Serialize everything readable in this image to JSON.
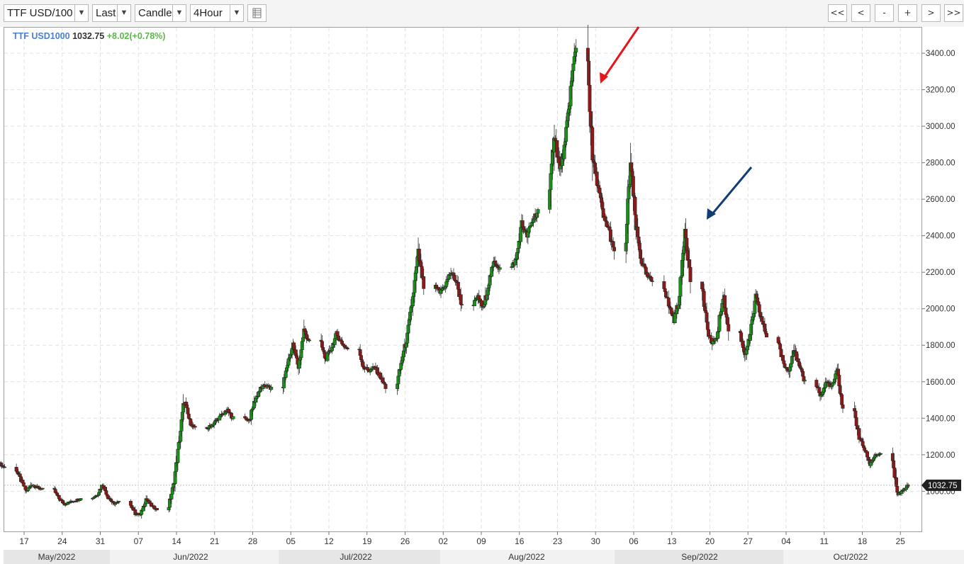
{
  "toolbar": {
    "symbol": "TTF USD/100",
    "price_type": "Last",
    "style": "Candle",
    "interval": "4Hour",
    "nav": [
      "<<",
      "<",
      "-",
      "+",
      ">",
      ">>"
    ]
  },
  "legend": {
    "symbol": "TTF USD1000",
    "last": "1032.75",
    "change": "+8.02(+0.78%)"
  },
  "price_tag": "1032.75",
  "colors": {
    "up": "#1a8f1a",
    "down": "#8b1a1a",
    "grid": "#e2e2e2",
    "red_arrow": "#e8141c",
    "blue_arrow": "#103d73"
  },
  "chart_data": {
    "type": "candlestick",
    "ylim": [
      780,
      3540
    ],
    "y_ticks": [
      1000,
      1200,
      1400,
      1600,
      1800,
      2000,
      2200,
      2400,
      2600,
      2800,
      3000,
      3200,
      3400
    ],
    "y_tick_labels": [
      "1000.00",
      "1200.00",
      "1400.00",
      "1600.00",
      "1800.00",
      "2000.00",
      "2200.00",
      "2400.00",
      "2600.00",
      "2800.00",
      "3000.00",
      "3200.00",
      "3400.00"
    ],
    "x_ticks": [
      "17",
      "24",
      "31",
      "07",
      "14",
      "21",
      "28",
      "05",
      "12",
      "19",
      "26",
      "02",
      "09",
      "16",
      "23",
      "30",
      "06",
      "13",
      "20",
      "27",
      "04",
      "11",
      "18",
      "25"
    ],
    "month_labels": [
      "May/2022",
      "Jun/2022",
      "Jul/2022",
      "Aug/2022",
      "Sep/2022",
      "Oct/2022"
    ],
    "grid": true,
    "daily_close": [
      [
        "2022-05-13",
        1130
      ],
      [
        "2022-05-16",
        1060
      ],
      [
        "2022-05-17",
        1000
      ],
      [
        "2022-05-18",
        1040
      ],
      [
        "2022-05-19",
        1020
      ],
      [
        "2022-05-20",
        1010
      ],
      [
        "2022-05-23",
        960
      ],
      [
        "2022-05-24",
        930
      ],
      [
        "2022-05-25",
        940
      ],
      [
        "2022-05-26",
        950
      ],
      [
        "2022-05-27",
        960
      ],
      [
        "2022-05-30",
        980
      ],
      [
        "2022-05-31",
        1040
      ],
      [
        "2022-06-01",
        970
      ],
      [
        "2022-06-02",
        930
      ],
      [
        "2022-06-03",
        940
      ],
      [
        "2022-06-06",
        880
      ],
      [
        "2022-06-07",
        870
      ],
      [
        "2022-06-08",
        960
      ],
      [
        "2022-06-09",
        920
      ],
      [
        "2022-06-10",
        900
      ],
      [
        "2022-06-13",
        1030
      ],
      [
        "2022-06-14",
        1250
      ],
      [
        "2022-06-15",
        1500
      ],
      [
        "2022-06-16",
        1380
      ],
      [
        "2022-06-17",
        1340
      ],
      [
        "2022-06-20",
        1360
      ],
      [
        "2022-06-21",
        1390
      ],
      [
        "2022-06-22",
        1420
      ],
      [
        "2022-06-23",
        1440
      ],
      [
        "2022-06-24",
        1400
      ],
      [
        "2022-06-27",
        1390
      ],
      [
        "2022-06-28",
        1500
      ],
      [
        "2022-06-29",
        1560
      ],
      [
        "2022-06-30",
        1580
      ],
      [
        "2022-07-01",
        1560
      ],
      [
        "2022-07-04",
        1700
      ],
      [
        "2022-07-05",
        1800
      ],
      [
        "2022-07-06",
        1680
      ],
      [
        "2022-07-07",
        1880
      ],
      [
        "2022-07-08",
        1820
      ],
      [
        "2022-07-11",
        1720
      ],
      [
        "2022-07-12",
        1780
      ],
      [
        "2022-07-13",
        1860
      ],
      [
        "2022-07-14",
        1810
      ],
      [
        "2022-07-15",
        1780
      ],
      [
        "2022-07-18",
        1680
      ],
      [
        "2022-07-19",
        1660
      ],
      [
        "2022-07-20",
        1680
      ],
      [
        "2022-07-21",
        1630
      ],
      [
        "2022-07-22",
        1570
      ],
      [
        "2022-07-25",
        1720
      ],
      [
        "2022-07-26",
        1850
      ],
      [
        "2022-07-27",
        2060
      ],
      [
        "2022-07-28",
        2300
      ],
      [
        "2022-07-29",
        2120
      ],
      [
        "2022-08-01",
        2090
      ],
      [
        "2022-08-02",
        2130
      ],
      [
        "2022-08-03",
        2200
      ],
      [
        "2022-08-04",
        2150
      ],
      [
        "2022-08-05",
        2020
      ],
      [
        "2022-08-08",
        2060
      ],
      [
        "2022-08-09",
        2000
      ],
      [
        "2022-08-10",
        2150
      ],
      [
        "2022-08-11",
        2260
      ],
      [
        "2022-08-12",
        2220
      ],
      [
        "2022-08-15",
        2270
      ],
      [
        "2022-08-16",
        2460
      ],
      [
        "2022-08-17",
        2400
      ],
      [
        "2022-08-18",
        2480
      ],
      [
        "2022-08-19",
        2540
      ],
      [
        "2022-08-22",
        2980
      ],
      [
        "2022-08-23",
        2750
      ],
      [
        "2022-08-24",
        2900
      ],
      [
        "2022-08-25",
        3200
      ],
      [
        "2022-08-26",
        3450
      ],
      [
        "2022-08-29",
        2820
      ],
      [
        "2022-08-30",
        2680
      ],
      [
        "2022-08-31",
        2500
      ],
      [
        "2022-09-01",
        2440
      ],
      [
        "2022-09-02",
        2300
      ],
      [
        "2022-09-05",
        2800
      ],
      [
        "2022-09-06",
        2450
      ],
      [
        "2022-09-07",
        2260
      ],
      [
        "2022-09-08",
        2180
      ],
      [
        "2022-09-09",
        2150
      ],
      [
        "2022-09-12",
        2020
      ],
      [
        "2022-09-13",
        1940
      ],
      [
        "2022-09-14",
        2060
      ],
      [
        "2022-09-15",
        2450
      ],
      [
        "2022-09-16",
        2160
      ],
      [
        "2022-09-19",
        1900
      ],
      [
        "2022-09-20",
        1800
      ],
      [
        "2022-09-21",
        1860
      ],
      [
        "2022-09-22",
        2080
      ],
      [
        "2022-09-23",
        1880
      ],
      [
        "2022-09-26",
        1750
      ],
      [
        "2022-09-27",
        1850
      ],
      [
        "2022-09-28",
        2060
      ],
      [
        "2022-09-29",
        1950
      ],
      [
        "2022-09-30",
        1850
      ],
      [
        "2022-10-03",
        1700
      ],
      [
        "2022-10-04",
        1660
      ],
      [
        "2022-10-05",
        1780
      ],
      [
        "2022-10-06",
        1680
      ],
      [
        "2022-10-07",
        1600
      ],
      [
        "2022-10-10",
        1520
      ],
      [
        "2022-10-11",
        1600
      ],
      [
        "2022-10-12",
        1570
      ],
      [
        "2022-10-13",
        1660
      ],
      [
        "2022-10-14",
        1450
      ],
      [
        "2022-10-17",
        1300
      ],
      [
        "2022-10-18",
        1230
      ],
      [
        "2022-10-19",
        1150
      ],
      [
        "2022-10-20",
        1200
      ],
      [
        "2022-10-21",
        1200
      ],
      [
        "2022-10-24",
        980
      ],
      [
        "2022-10-25",
        1000
      ],
      [
        "2022-10-26",
        1032.75
      ]
    ]
  }
}
